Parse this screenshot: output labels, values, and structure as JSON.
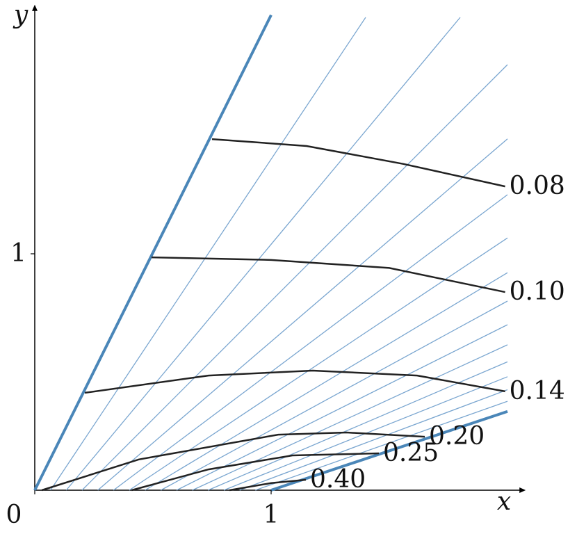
{
  "chart_data": {
    "type": "line",
    "x_label": "x",
    "y_label": "y",
    "xlim": [
      0,
      2.03
    ],
    "ylim": [
      0,
      2.03
    ],
    "xticks": [
      0,
      1
    ],
    "yticks": [
      1
    ],
    "boundary_color": "#4a86b8",
    "characteristic_color": "#7aa6d0",
    "boundaries": [
      {
        "x": [
          0,
          1.0
        ],
        "y": [
          0,
          2.01
        ]
      },
      {
        "x": [
          1,
          2.0
        ],
        "y": [
          0,
          0.333
        ]
      }
    ],
    "characteristics": [
      {
        "x": [
          0.0667,
          1.4
        ],
        "y": [
          0,
          2.0
        ]
      },
      {
        "x": [
          0.1333,
          1.8
        ],
        "y": [
          0,
          2.0
        ]
      },
      {
        "x": [
          0.2,
          2.0
        ],
        "y": [
          0,
          1.8
        ]
      },
      {
        "x": [
          0.2667,
          2.0
        ],
        "y": [
          0,
          1.486
        ]
      },
      {
        "x": [
          0.3333,
          2.0
        ],
        "y": [
          0,
          1.25
        ]
      },
      {
        "x": [
          0.4,
          2.0
        ],
        "y": [
          0,
          1.067
        ]
      },
      {
        "x": [
          0.4667,
          2.0
        ],
        "y": [
          0,
          0.92
        ]
      },
      {
        "x": [
          0.5333,
          2.0
        ],
        "y": [
          0,
          0.8
        ]
      },
      {
        "x": [
          0.6,
          2.0
        ],
        "y": [
          0,
          0.7
        ]
      },
      {
        "x": [
          0.6667,
          2.0
        ],
        "y": [
          0,
          0.615
        ]
      },
      {
        "x": [
          0.7333,
          2.0
        ],
        "y": [
          0,
          0.543
        ]
      },
      {
        "x": [
          0.8,
          2.0
        ],
        "y": [
          0,
          0.48
        ]
      },
      {
        "x": [
          0.8667,
          2.0
        ],
        "y": [
          0,
          0.425
        ]
      },
      {
        "x": [
          0.9333,
          2.0
        ],
        "y": [
          0,
          0.376
        ]
      }
    ],
    "series": [
      {
        "name": "0.08",
        "color": "#222222",
        "x": [
          0.75,
          1.15,
          1.56,
          1.99
        ],
        "y": [
          1.485,
          1.456,
          1.38,
          1.285
        ]
      },
      {
        "name": "0.10",
        "color": "#222222",
        "x": [
          0.494,
          1.0,
          1.5,
          1.99
        ],
        "y": [
          0.985,
          0.974,
          0.94,
          0.838
        ]
      },
      {
        "name": "0.14",
        "color": "#222222",
        "x": [
          0.212,
          0.735,
          1.176,
          1.618,
          1.99
        ],
        "y": [
          0.412,
          0.485,
          0.506,
          0.485,
          0.418
        ]
      },
      {
        "name": "0.20",
        "color": "#222222",
        "x": [
          0.03,
          0.44,
          1.03,
          1.32,
          1.65
        ],
        "y": [
          0,
          0.13,
          0.235,
          0.244,
          0.226
        ]
      },
      {
        "name": "0.25",
        "color": "#222222",
        "x": [
          0.41,
          0.735,
          1.09,
          1.456
        ],
        "y": [
          0,
          0.088,
          0.147,
          0.156
        ]
      },
      {
        "name": "0.40",
        "color": "#222222",
        "x": [
          0.824,
          1.0,
          1.147
        ],
        "y": [
          0,
          0.03,
          0.044
        ]
      }
    ]
  }
}
